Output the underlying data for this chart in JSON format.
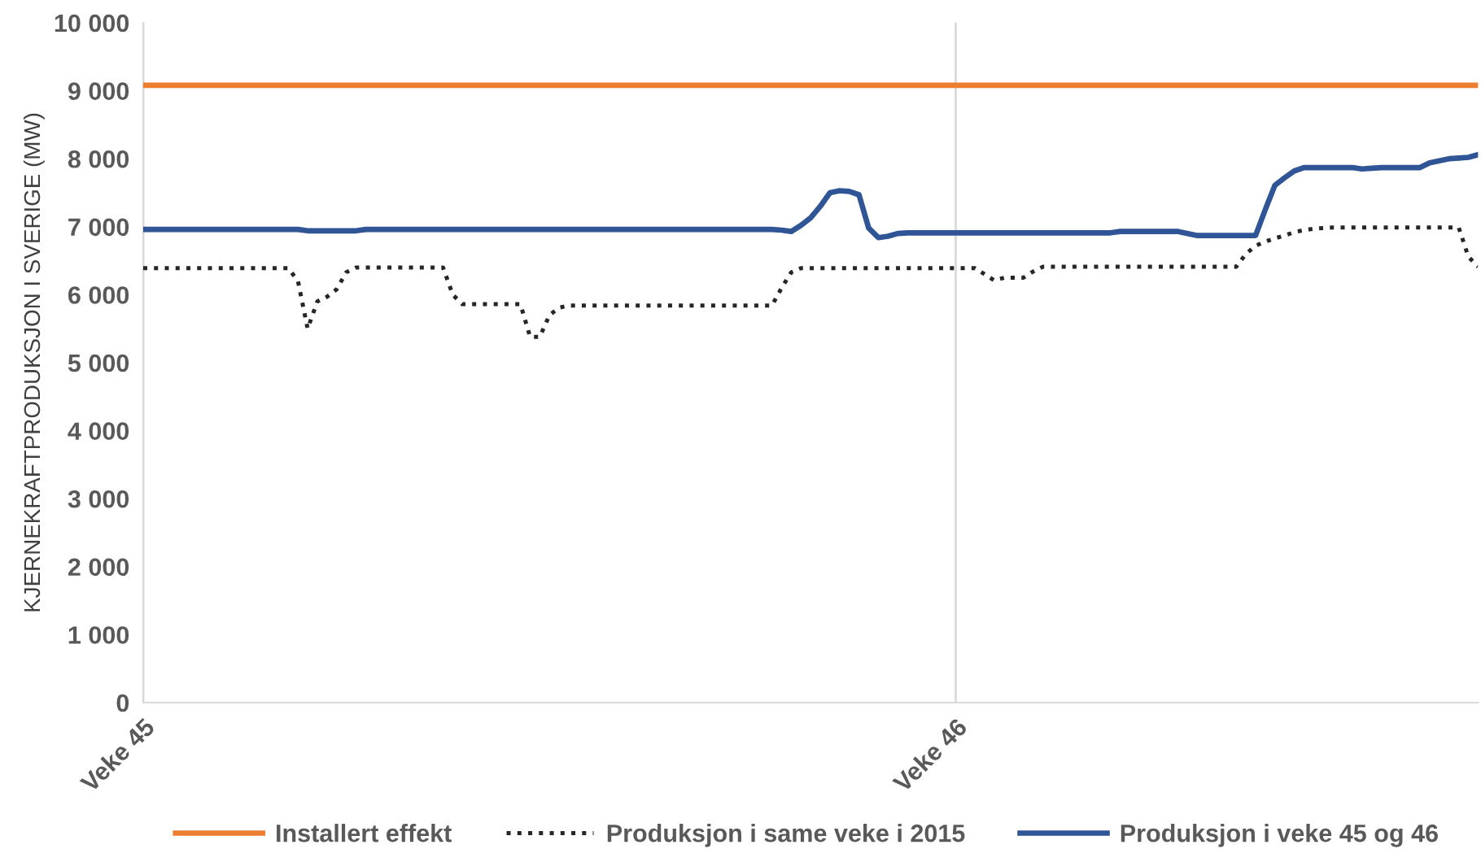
{
  "chart_data": {
    "type": "line",
    "ylabel": "KJERNEKRAFTPRODUKSJON I SVERIGE (MW)",
    "categories": [
      "Veke 45",
      null,
      null,
      null,
      null,
      null,
      null,
      null,
      null,
      null,
      null,
      null,
      null,
      null,
      null,
      null,
      null,
      null,
      null,
      null,
      null,
      null,
      null,
      null,
      null,
      null,
      null,
      null,
      null,
      null,
      null,
      null,
      null,
      null,
      null,
      null,
      null,
      null,
      null,
      null,
      null,
      null,
      null,
      null,
      null,
      null,
      null,
      null,
      null,
      null,
      null,
      null,
      null,
      null,
      null,
      null,
      null,
      null,
      null,
      null,
      null,
      null,
      null,
      null,
      null,
      null,
      null,
      null,
      null,
      null,
      null,
      null,
      null,
      null,
      null,
      null,
      null,
      null,
      null,
      null,
      null,
      null,
      null,
      null,
      "Veke 46",
      null,
      null,
      null,
      null,
      null,
      null,
      null,
      null,
      null,
      null,
      null,
      null,
      null,
      null,
      null,
      null,
      null,
      null,
      null,
      null,
      null,
      null,
      null,
      null,
      null,
      null,
      null,
      null,
      null,
      null,
      null,
      null,
      null,
      null,
      null,
      null,
      null,
      null,
      null,
      null,
      null,
      null,
      null,
      null,
      null,
      null,
      null,
      null,
      null,
      null,
      null,
      null,
      null,
      null
    ],
    "ylim": [
      0,
      10000
    ],
    "yticks": [
      0,
      {
        "value": 1000,
        "label": "1 000"
      },
      {
        "value": 2000,
        "label": "2 000"
      },
      {
        "value": 3000,
        "label": "3 000"
      },
      {
        "value": 4000,
        "label": "4 000"
      },
      {
        "value": 5000,
        "label": "5 000"
      },
      {
        "value": 6000,
        "label": "6 000"
      },
      {
        "value": 7000,
        "label": "7 000"
      },
      {
        "value": 8000,
        "label": "8 000"
      },
      {
        "value": 9000,
        "label": "9 000"
      },
      {
        "value": 10000,
        "label": "10 000"
      }
    ],
    "grid": "x",
    "legend": "bottom",
    "marker": "none",
    "series": [
      {
        "name": "Installert effekt",
        "color": "#ed7d31",
        "line_style": "solid",
        "values": [
          9080,
          9080,
          9080,
          9080,
          9080,
          9080,
          9080,
          9080,
          9080,
          9080,
          9080,
          9080,
          9080,
          9080,
          9080,
          9080,
          9080,
          9080,
          9080,
          9080,
          9080,
          9080,
          9080,
          9080,
          9080,
          9080,
          9080,
          9080,
          9080,
          9080,
          9080,
          9080,
          9080,
          9080,
          9080,
          9080,
          9080,
          9080,
          9080,
          9080,
          9080,
          9080,
          9080,
          9080,
          9080,
          9080,
          9080,
          9080,
          9080,
          9080,
          9080,
          9080,
          9080,
          9080,
          9080,
          9080,
          9080,
          9080,
          9080,
          9080,
          9080,
          9080,
          9080,
          9080,
          9080,
          9080,
          9080,
          9080,
          9080,
          9080,
          9080,
          9080,
          9080,
          9080,
          9080,
          9080,
          9080,
          9080,
          9080,
          9080,
          9080,
          9080,
          9080,
          9080,
          9080,
          9080,
          9080,
          9080,
          9080,
          9080,
          9080,
          9080,
          9080,
          9080,
          9080,
          9080,
          9080,
          9080,
          9080,
          9080,
          9080,
          9080,
          9080,
          9080,
          9080,
          9080,
          9080,
          9080,
          9080,
          9080,
          9080,
          9080,
          9080,
          9080,
          9080,
          9080,
          9080,
          9080,
          9080,
          9080,
          9080,
          9080,
          9080,
          9080,
          9080,
          9080,
          9080,
          9080,
          9080,
          9080,
          9080,
          9080,
          9080,
          9080,
          9080,
          9080,
          9080,
          9080,
          9080
        ]
      },
      {
        "name": "Produksjon i same veke i 2015",
        "color": "#262626",
        "line_style": "dotted",
        "values": [
          6390,
          6390,
          6390,
          6390,
          6390,
          6390,
          6390,
          6390,
          6390,
          6390,
          6390,
          6390,
          6390,
          6390,
          6390,
          6390,
          6200,
          5500,
          5900,
          5970,
          6080,
          6330,
          6400,
          6400,
          6400,
          6400,
          6400,
          6400,
          6400,
          6400,
          6400,
          6400,
          6000,
          5860,
          5860,
          5860,
          5860,
          5860,
          5860,
          5860,
          5380,
          5380,
          5700,
          5810,
          5840,
          5840,
          5840,
          5840,
          5840,
          5840,
          5840,
          5840,
          5840,
          5840,
          5840,
          5840,
          5840,
          5840,
          5840,
          5840,
          5840,
          5840,
          5840,
          5840,
          5840,
          5840,
          6100,
          6330,
          6390,
          6390,
          6390,
          6390,
          6390,
          6390,
          6390,
          6390,
          6390,
          6390,
          6390,
          6390,
          6390,
          6390,
          6390,
          6390,
          6390,
          6390,
          6390,
          6300,
          6210,
          6250,
          6250,
          6250,
          6340,
          6410,
          6410,
          6410,
          6410,
          6410,
          6410,
          6410,
          6410,
          6410,
          6410,
          6410,
          6410,
          6410,
          6410,
          6410,
          6410,
          6410,
          6410,
          6410,
          6410,
          6410,
          6600,
          6720,
          6780,
          6830,
          6870,
          6920,
          6950,
          6970,
          6980,
          6990,
          6990,
          6990,
          6990,
          6990,
          6990,
          6990,
          6990,
          6990,
          6990,
          6990,
          6990,
          6990,
          6990,
          6560,
          6410
        ]
      },
      {
        "name": "Produksjon i veke 45 og 46",
        "color": "#2f5597",
        "line_style": "solid",
        "values": [
          6960,
          6960,
          6960,
          6960,
          6960,
          6960,
          6960,
          6960,
          6960,
          6960,
          6960,
          6960,
          6960,
          6960,
          6960,
          6960,
          6960,
          6940,
          6940,
          6940,
          6940,
          6940,
          6940,
          6960,
          6960,
          6960,
          6960,
          6960,
          6960,
          6960,
          6960,
          6960,
          6960,
          6960,
          6960,
          6960,
          6960,
          6960,
          6960,
          6960,
          6960,
          6960,
          6960,
          6960,
          6960,
          6960,
          6960,
          6960,
          6960,
          6960,
          6960,
          6960,
          6960,
          6960,
          6960,
          6960,
          6960,
          6960,
          6960,
          6960,
          6960,
          6960,
          6960,
          6960,
          6960,
          6960,
          6950,
          6930,
          7020,
          7130,
          7300,
          7500,
          7530,
          7520,
          7470,
          6980,
          6840,
          6860,
          6900,
          6910,
          6910,
          6910,
          6910,
          6910,
          6910,
          6910,
          6910,
          6910,
          6910,
          6910,
          6910,
          6910,
          6910,
          6910,
          6910,
          6910,
          6910,
          6910,
          6910,
          6910,
          6910,
          6930,
          6930,
          6930,
          6930,
          6930,
          6930,
          6930,
          6900,
          6870,
          6870,
          6870,
          6870,
          6870,
          6870,
          6870,
          7250,
          7610,
          7720,
          7820,
          7870,
          7870,
          7870,
          7870,
          7870,
          7870,
          7850,
          7860,
          7870,
          7870,
          7870,
          7870,
          7870,
          7940,
          7970,
          8000,
          8010,
          8020,
          8060
        ]
      }
    ]
  }
}
